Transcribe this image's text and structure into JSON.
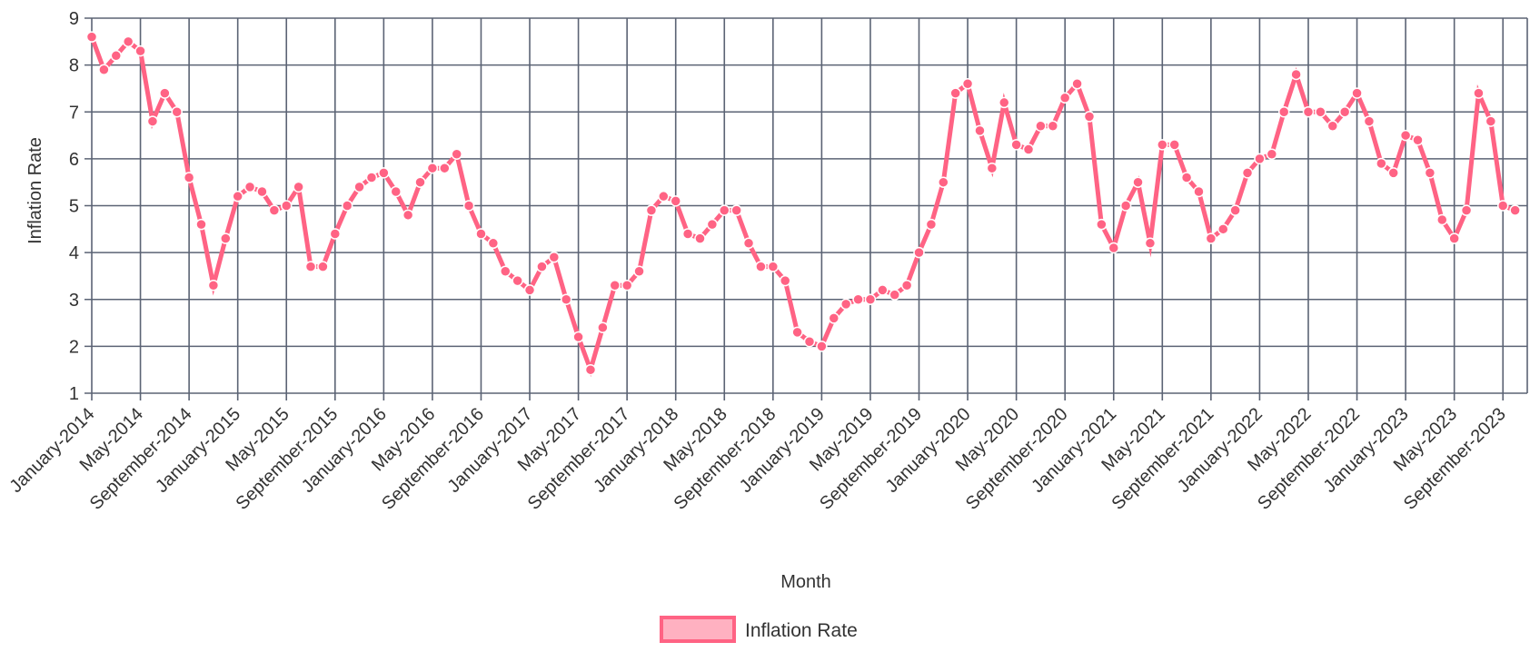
{
  "chart_data": {
    "type": "line",
    "title": "",
    "xlabel": "Month",
    "ylabel": "Inflation Rate",
    "ylim": [
      1,
      9
    ],
    "yticks": [
      1,
      2,
      3,
      4,
      5,
      6,
      7,
      8,
      9
    ],
    "grid": true,
    "legend_position": "bottom",
    "x_tick_labels": [
      "January-2014",
      "May-2014",
      "September-2014",
      "January-2015",
      "May-2015",
      "September-2015",
      "January-2016",
      "May-2016",
      "September-2016",
      "January-2017",
      "May-2017",
      "September-2017",
      "January-2018",
      "May-2018",
      "September-2018",
      "January-2019",
      "May-2019",
      "September-2019",
      "January-2020",
      "May-2020",
      "September-2020",
      "January-2021",
      "May-2021",
      "September-2021",
      "January-2022",
      "May-2022",
      "September-2022",
      "January-2023",
      "May-2023",
      "September-2023"
    ],
    "x_tick_every": 4,
    "series": [
      {
        "name": "Inflation Rate",
        "color": "#ff6384",
        "fill": "#ffb1c1",
        "values": [
          8.6,
          7.9,
          8.2,
          8.5,
          8.3,
          6.8,
          7.4,
          7.0,
          5.6,
          4.6,
          3.3,
          4.3,
          5.2,
          5.4,
          5.3,
          4.9,
          5.0,
          5.4,
          3.7,
          3.7,
          4.4,
          5.0,
          5.4,
          5.6,
          5.7,
          5.3,
          4.8,
          5.5,
          5.8,
          5.8,
          6.1,
          5.0,
          4.4,
          4.2,
          3.6,
          3.4,
          3.2,
          3.7,
          3.9,
          3.0,
          2.2,
          1.5,
          2.4,
          3.3,
          3.3,
          3.6,
          4.9,
          5.2,
          5.1,
          4.4,
          4.3,
          4.6,
          4.9,
          4.9,
          4.2,
          3.7,
          3.7,
          3.4,
          2.3,
          2.1,
          2.0,
          2.6,
          2.9,
          3.0,
          3.0,
          3.2,
          3.1,
          3.3,
          4.0,
          4.6,
          5.5,
          7.4,
          7.6,
          6.6,
          5.8,
          7.2,
          6.3,
          6.2,
          6.7,
          6.7,
          7.3,
          7.6,
          6.9,
          4.6,
          4.1,
          5.0,
          5.5,
          4.2,
          6.3,
          6.3,
          5.6,
          5.3,
          4.3,
          4.5,
          4.9,
          5.7,
          6.0,
          6.1,
          7.0,
          7.8,
          7.0,
          7.0,
          6.7,
          7.0,
          7.4,
          6.8,
          5.9,
          5.7,
          6.5,
          6.4,
          5.7,
          4.7,
          4.3,
          4.9,
          7.4,
          6.8,
          5.0,
          4.9
        ]
      }
    ]
  }
}
